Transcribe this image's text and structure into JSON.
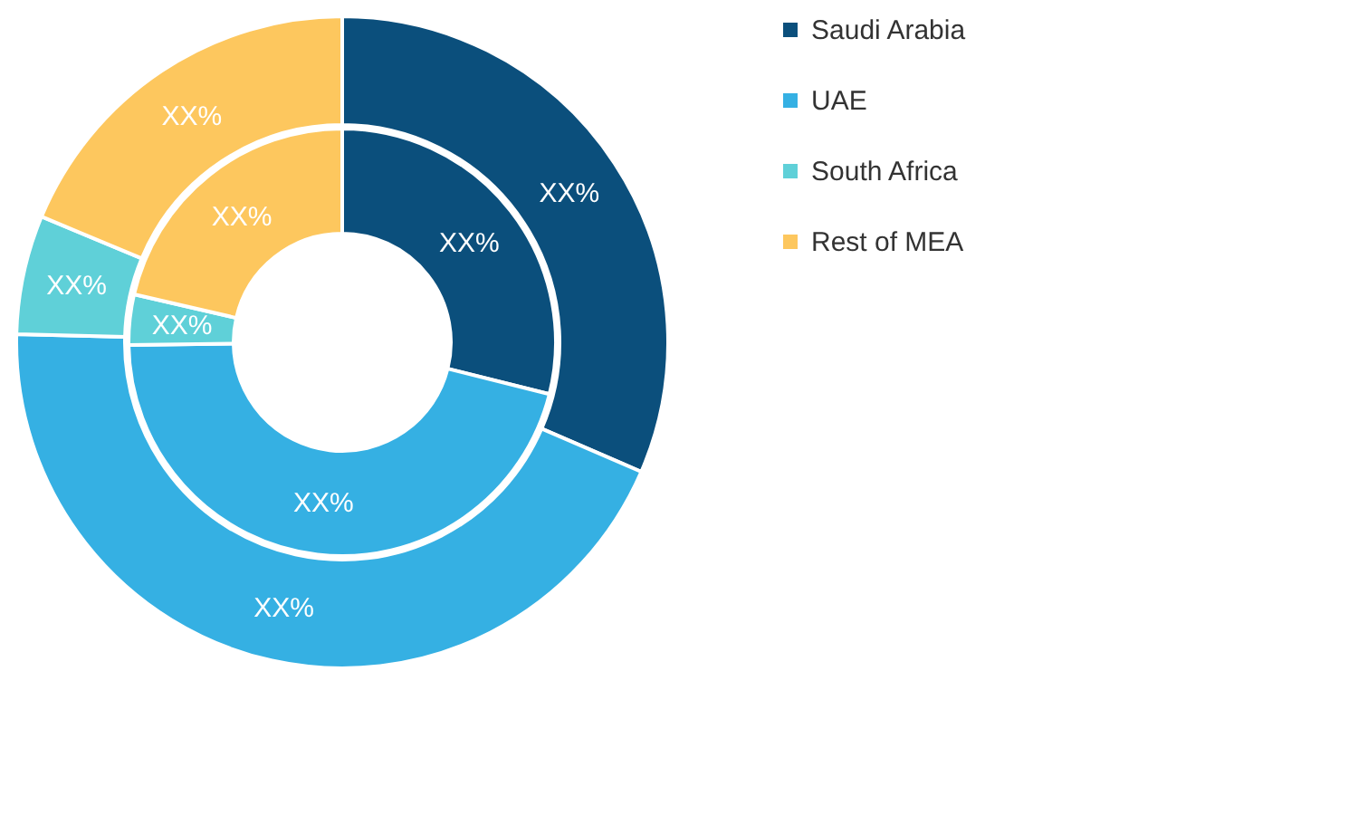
{
  "chart_data": {
    "type": "donut",
    "categories": [
      "Saudi Arabia",
      "UAE",
      "South Africa",
      "Rest of MEA"
    ],
    "colors": [
      "#0b4f7c",
      "#35b0e3",
      "#5fd0d8",
      "#fdc75e"
    ],
    "series": [
      {
        "values": [
          31.5,
          43.9,
          5.9,
          18.7
        ],
        "value_labels": [
          "XX%",
          "XX%",
          "XX%",
          "XX%"
        ]
      },
      {
        "values": [
          28.9,
          45.9,
          3.8,
          21.4
        ],
        "value_labels": [
          "XX%",
          "XX%",
          "XX%",
          "XX%"
        ]
      }
    ],
    "legend": "right"
  }
}
